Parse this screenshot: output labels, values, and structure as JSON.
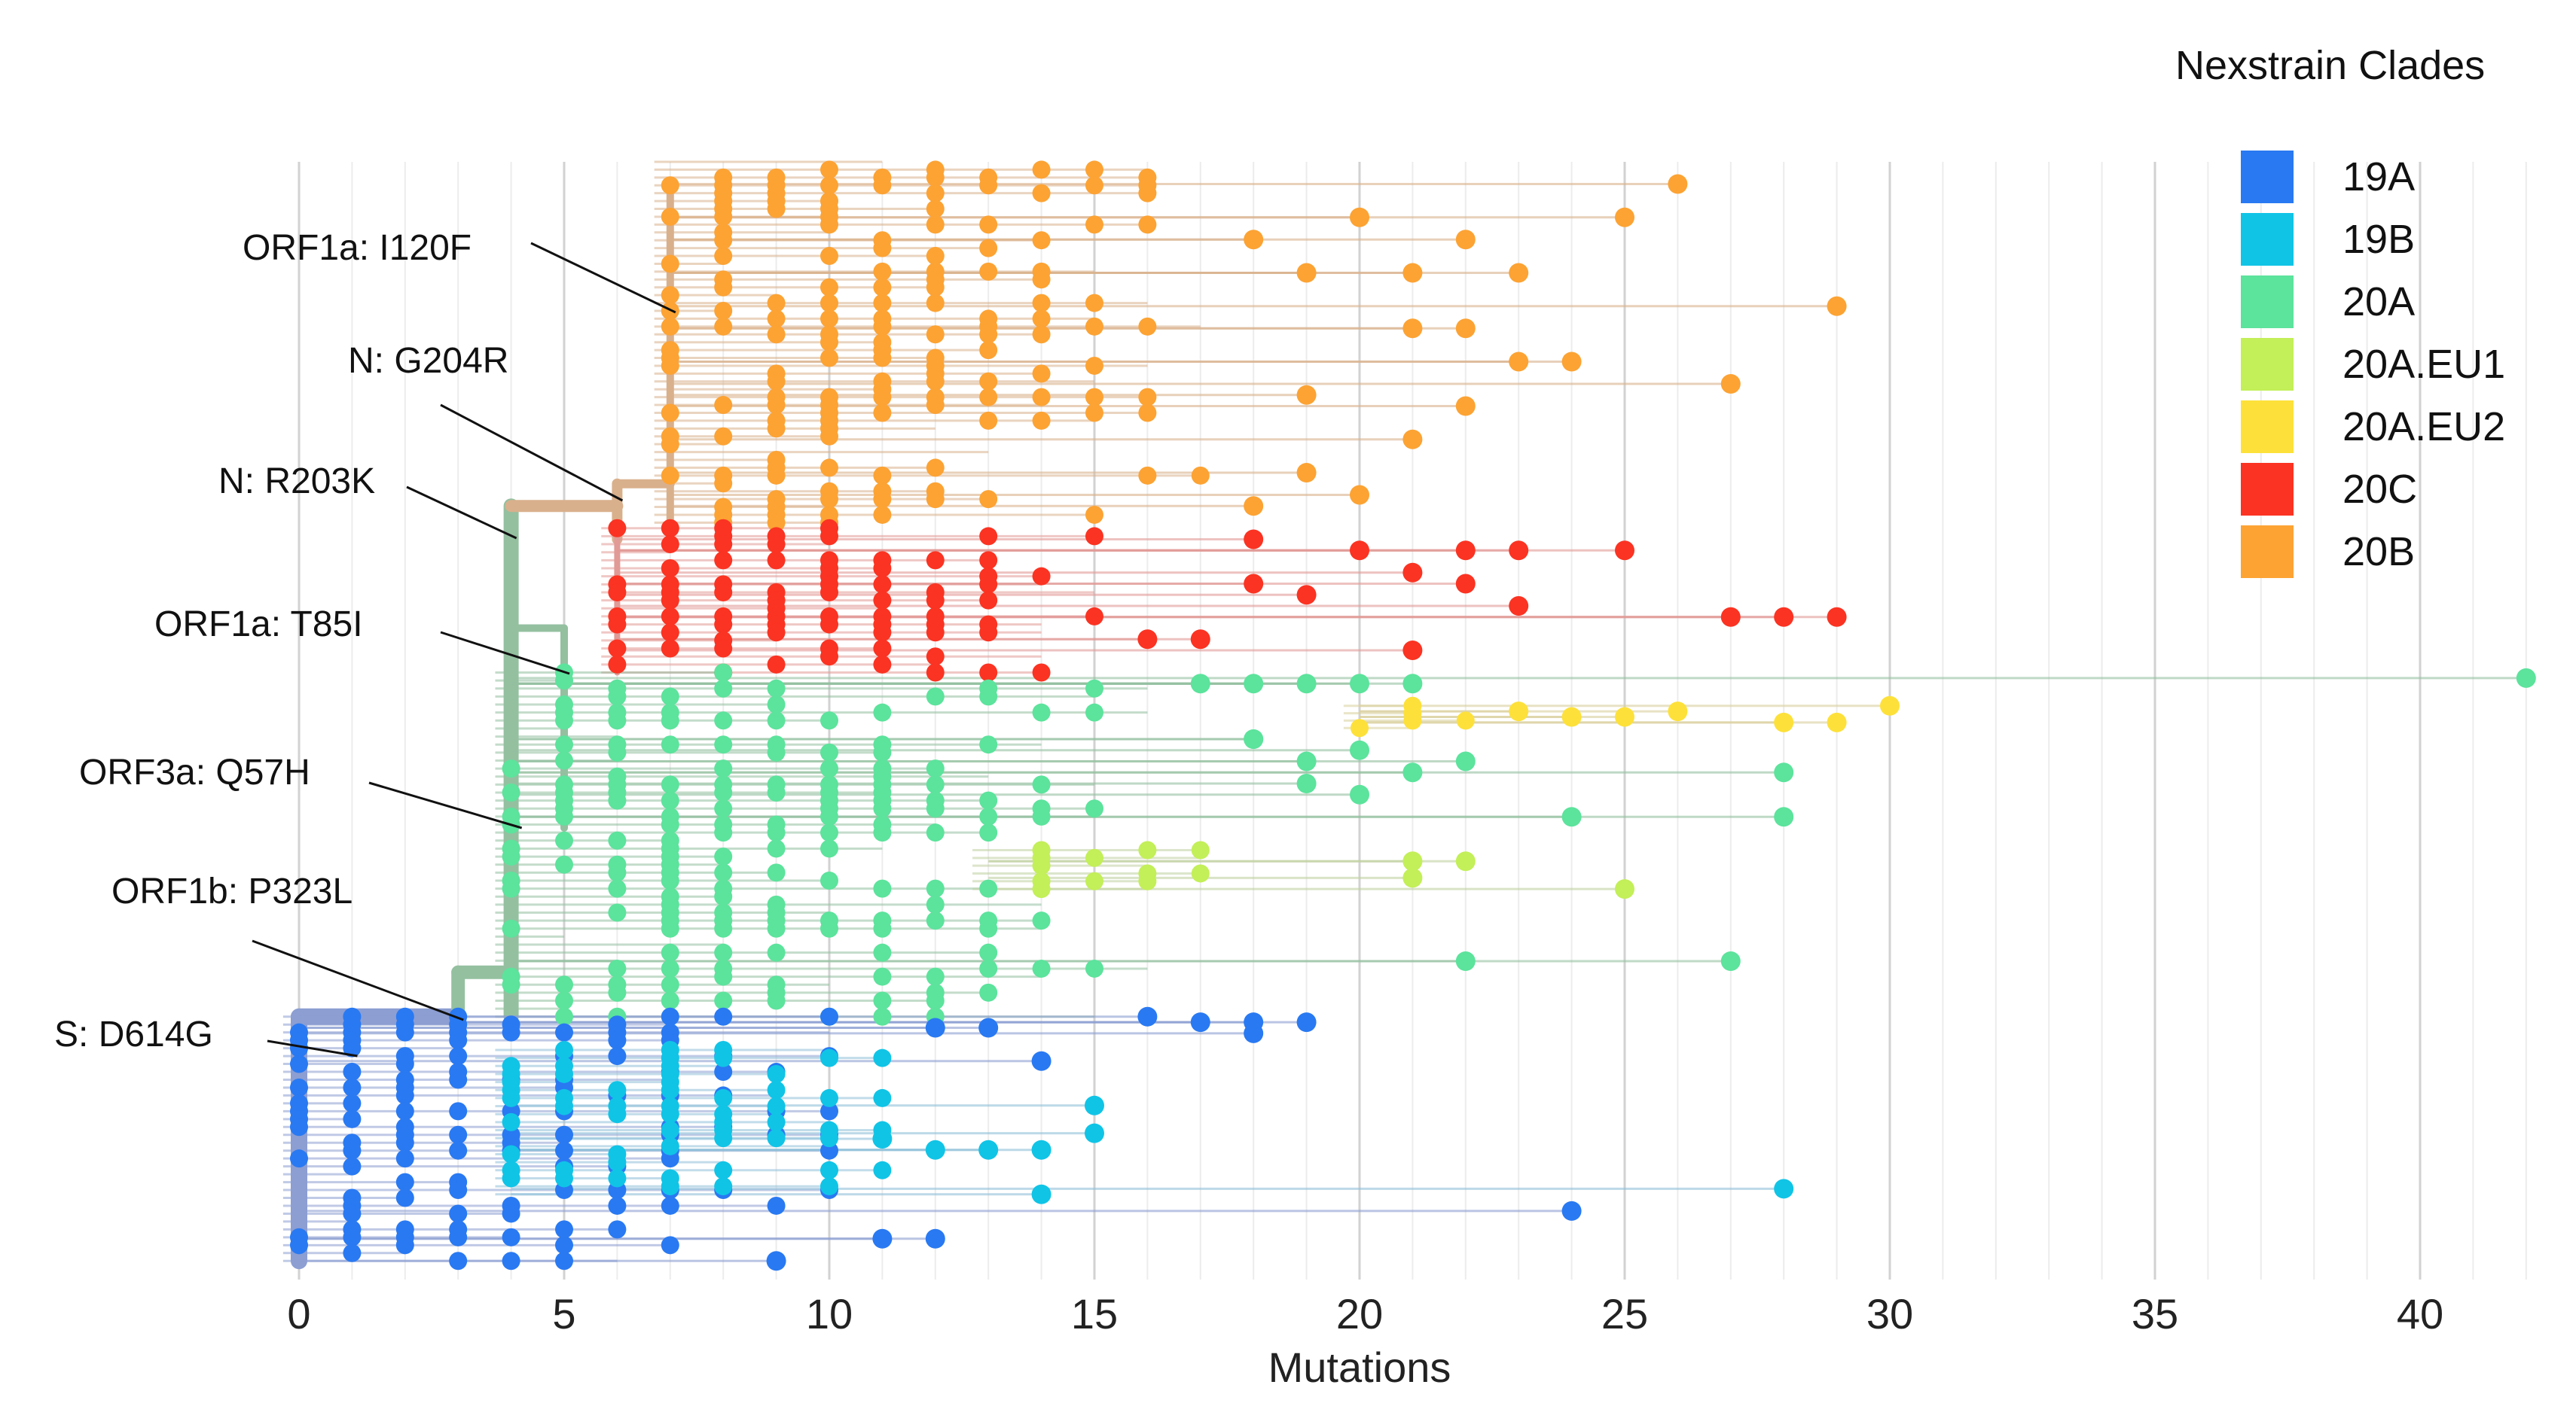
{
  "chart_data": {
    "type": "scatter",
    "title": "",
    "xlabel": "Mutations",
    "ylabel": "",
    "xlim": [
      0,
      42.5
    ],
    "xticks": [
      0,
      5,
      10,
      15,
      20,
      25,
      30,
      35,
      40
    ],
    "grid": "vertical",
    "legend": {
      "title": "Nexstrain Clades",
      "placement": "top-right",
      "entries": [
        {
          "name": "19A",
          "color": "#2979f2"
        },
        {
          "name": "19B",
          "color": "#10c4e6"
        },
        {
          "name": "20A",
          "color": "#5ce39c"
        },
        {
          "name": "20A.EU1",
          "color": "#c3ef58"
        },
        {
          "name": "20A.EU2",
          "color": "#fde13a"
        },
        {
          "name": "20C",
          "color": "#fb3322"
        },
        {
          "name": "20B",
          "color": "#fca334"
        }
      ]
    },
    "branch_colors": {
      "19A": "#8c9ed2",
      "19B": "#8fbfd8",
      "20A": "#94c0a0",
      "20A.EU1": "#bfd0a0",
      "20A.EU2": "#d9cf9c",
      "20C": "#e19a96",
      "20B": "#d9b08c"
    },
    "annotations": [
      {
        "text": "ORF1a: I120F",
        "x": 7.1
      },
      {
        "text": "N: G204R",
        "x": 6.1
      },
      {
        "text": "N: R203K",
        "x": 4.1
      },
      {
        "text": "ORF1a: T85I",
        "x": 5.1
      },
      {
        "text": "ORF3a: Q57H",
        "x": 4.2
      },
      {
        "text": "ORF1b: P323L",
        "x": 3.1
      },
      {
        "text": "S: D614G",
        "x": 1.1
      }
    ],
    "clades": [
      {
        "name": "20B",
        "row_range": [
          0,
          0.325
        ],
        "x_min": 7,
        "x_max": 17,
        "outliers": [
          [
            18,
            0.07
          ],
          [
            20,
            0.05
          ],
          [
            22,
            0.07
          ],
          [
            26,
            0.02
          ],
          [
            25,
            0.05
          ],
          [
            29,
            0.13
          ],
          [
            23,
            0.18
          ],
          [
            24,
            0.18
          ],
          [
            27,
            0.2
          ],
          [
            21,
            0.25
          ],
          [
            22,
            0.22
          ],
          [
            19,
            0.28
          ],
          [
            18,
            0.31
          ],
          [
            20,
            0.3
          ],
          [
            21,
            0.1
          ],
          [
            23,
            0.1
          ],
          [
            19,
            0.1
          ],
          [
            21,
            0.15
          ],
          [
            22,
            0.15
          ],
          [
            19,
            0.21
          ]
        ]
      },
      {
        "name": "20C",
        "row_range": [
          0.33,
          0.46
        ],
        "x_min": 6,
        "x_max": 15,
        "outliers": [
          [
            18,
            0.34
          ],
          [
            20,
            0.35
          ],
          [
            22,
            0.35
          ],
          [
            23,
            0.35
          ],
          [
            25,
            0.35
          ],
          [
            18,
            0.38
          ],
          [
            19,
            0.39
          ],
          [
            21,
            0.37
          ],
          [
            22,
            0.38
          ],
          [
            27,
            0.41
          ],
          [
            28,
            0.41
          ],
          [
            29,
            0.41
          ],
          [
            21,
            0.44
          ],
          [
            23,
            0.4
          ],
          [
            16,
            0.43
          ],
          [
            17,
            0.43
          ]
        ]
      },
      {
        "name": "20A.EU2",
        "row_range": [
          0.49,
          0.51
        ],
        "x_min": 20,
        "x_max": 22,
        "outliers": [
          [
            23,
            0.495
          ],
          [
            24,
            0.5
          ],
          [
            25,
            0.5
          ],
          [
            26,
            0.495
          ],
          [
            28,
            0.505
          ],
          [
            29,
            0.505
          ],
          [
            30,
            0.49
          ]
        ]
      },
      {
        "name": "20A",
        "row_range": [
          0.46,
          0.77
        ],
        "x_min": 4,
        "x_max": 16,
        "outliers": [
          [
            42,
            0.465
          ],
          [
            17,
            0.47
          ],
          [
            18,
            0.47
          ],
          [
            19,
            0.47
          ],
          [
            20,
            0.47
          ],
          [
            21,
            0.47
          ],
          [
            18,
            0.52
          ],
          [
            19,
            0.54
          ],
          [
            22,
            0.54
          ],
          [
            21,
            0.55
          ],
          [
            28,
            0.55
          ],
          [
            20,
            0.57
          ],
          [
            19,
            0.56
          ],
          [
            24,
            0.59
          ],
          [
            28,
            0.59
          ],
          [
            22,
            0.72
          ],
          [
            27,
            0.72
          ],
          [
            18,
            0.52
          ],
          [
            20,
            0.53
          ]
        ]
      },
      {
        "name": "20A.EU1",
        "row_range": [
          0.62,
          0.655
        ],
        "x_min": 13,
        "x_max": 20,
        "outliers": [
          [
            21,
            0.63
          ],
          [
            22,
            0.63
          ],
          [
            25,
            0.655
          ],
          [
            21,
            0.645
          ]
        ]
      },
      {
        "name": "19A",
        "row_range": [
          0.77,
          0.99
        ],
        "x_min": 0,
        "x_max": 10,
        "outliers": [
          [
            16,
            0.77
          ],
          [
            18,
            0.775
          ],
          [
            18,
            0.785
          ],
          [
            19,
            0.775
          ],
          [
            17,
            0.775
          ],
          [
            13,
            0.78
          ],
          [
            12,
            0.78
          ],
          [
            14,
            0.81
          ],
          [
            24,
            0.945
          ],
          [
            11,
            0.97
          ],
          [
            12,
            0.97
          ],
          [
            9,
            0.99
          ]
        ]
      },
      {
        "name": "19B",
        "row_range": [
          0.8,
          0.93
        ],
        "x_min": 4,
        "x_max": 11,
        "outliers": [
          [
            15,
            0.85
          ],
          [
            15,
            0.875
          ],
          [
            14,
            0.89
          ],
          [
            12,
            0.89
          ],
          [
            13,
            0.89
          ],
          [
            14,
            0.93
          ],
          [
            28,
            0.925
          ],
          [
            11,
            0.88
          ]
        ]
      }
    ]
  }
}
